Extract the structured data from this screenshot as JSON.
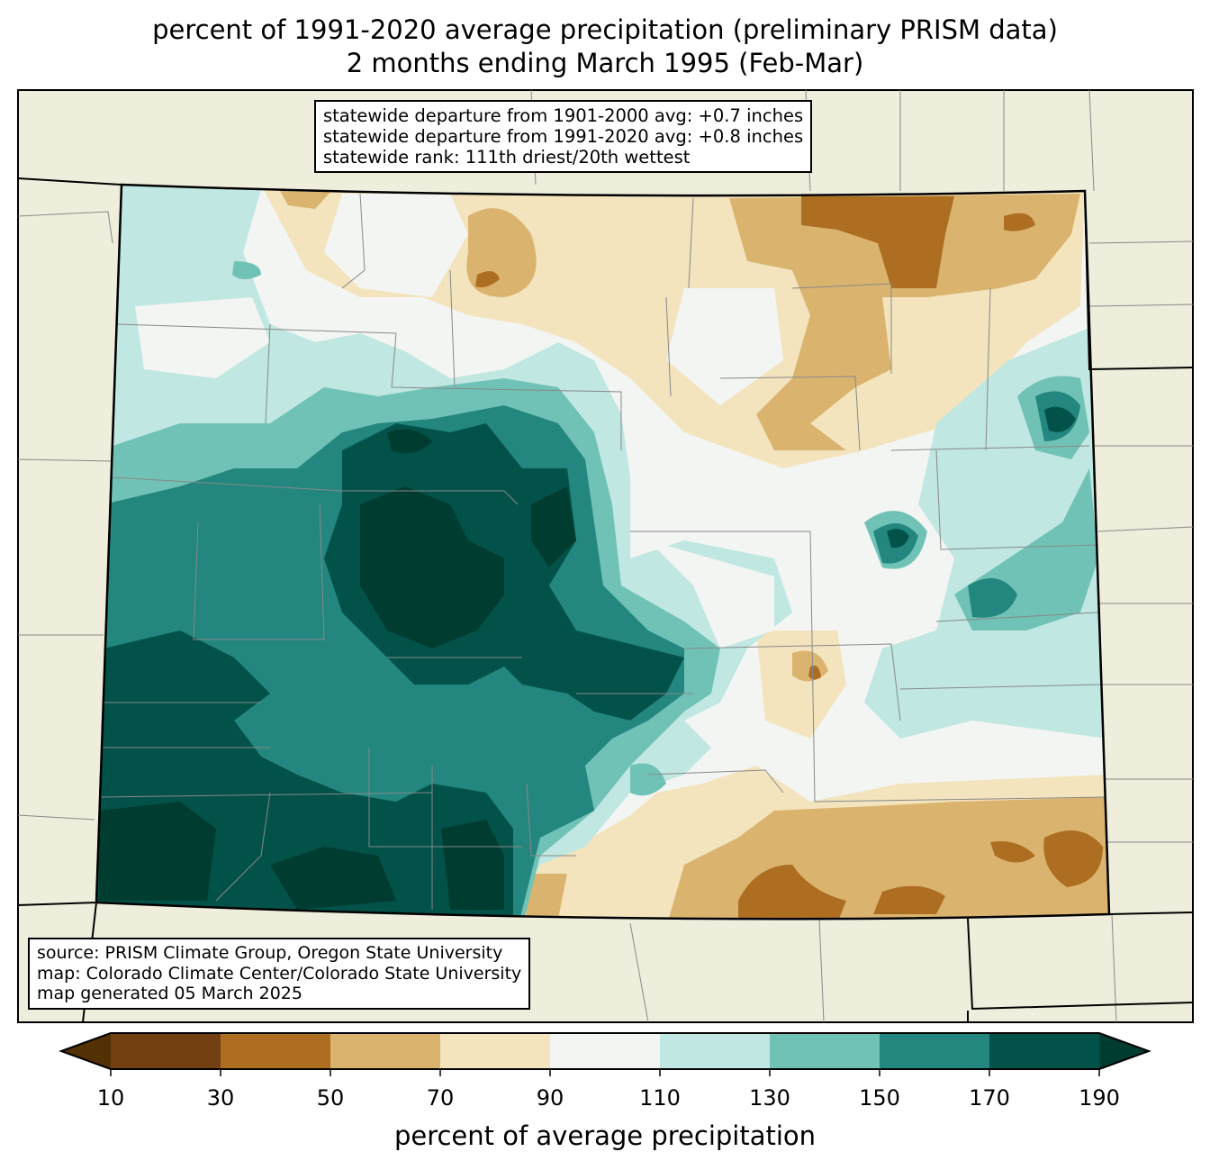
{
  "title": {
    "line1": "percent of 1991-2020 average precipitation (preliminary PRISM data)",
    "line2": "2 months ending March 1995 (Feb-Mar)"
  },
  "stats": {
    "line1": "statewide departure from 1901-2000 avg: +0.7 inches",
    "line2": "statewide departure from 1991-2020 avg: +0.8 inches",
    "line3": "statewide rank: 111th driest/20th wettest"
  },
  "credits": {
    "line1": "source: PRISM Climate Group, Oregon State University",
    "line2": "map: Colorado Climate Center/Colorado State University",
    "line3": "map generated 05 March 2025"
  },
  "colorbar": {
    "label": "percent of average precipitation",
    "ticks": [
      "10",
      "30",
      "50",
      "70",
      "90",
      "110",
      "130",
      "150",
      "170",
      "190"
    ],
    "colors": [
      "#734011",
      "#ad6e22",
      "#dab46f",
      "#f3e4be",
      "#f3f5f3",
      "#c0e7e2",
      "#71c2b6",
      "#238780",
      "#02524a"
    ],
    "under_color": "#543005",
    "over_color": "#003c30"
  }
}
